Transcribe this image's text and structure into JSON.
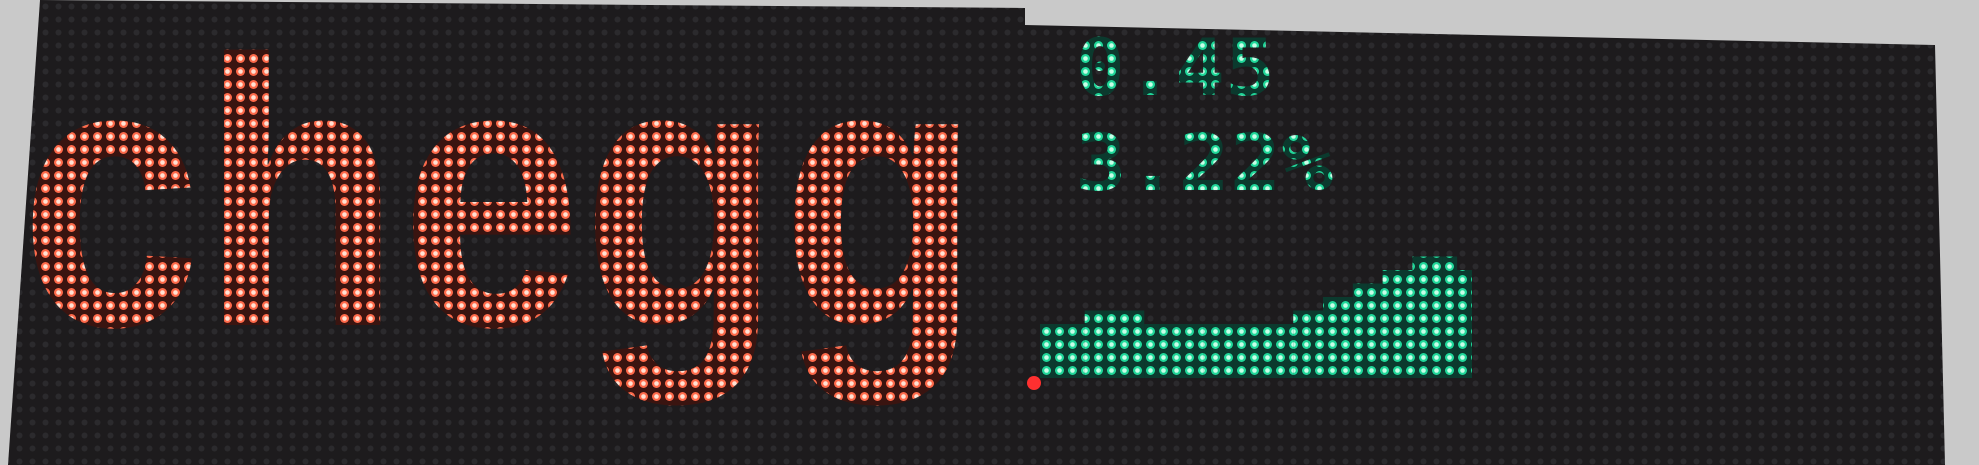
{
  "logo": {
    "text": "chegg"
  },
  "quote": {
    "price": "0.45",
    "change": "3.22%"
  },
  "sparkline": {
    "values": [
      4,
      4,
      4,
      5,
      5,
      5,
      5,
      4,
      4,
      4,
      4,
      4,
      4,
      4,
      4,
      4,
      4,
      5,
      5,
      6,
      6,
      7,
      7,
      8,
      8,
      9,
      9,
      9,
      8
    ]
  }
}
